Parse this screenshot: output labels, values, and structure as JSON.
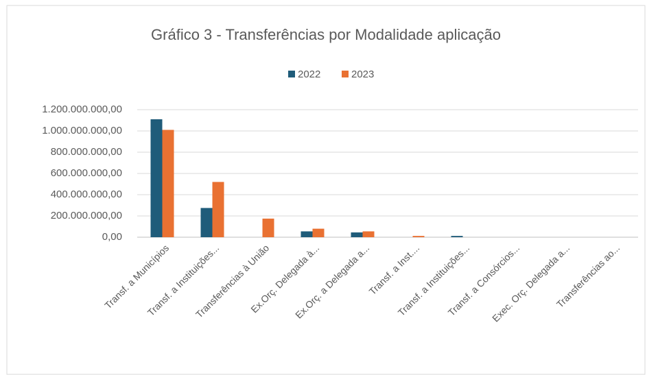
{
  "chart_data": {
    "type": "bar",
    "title": "Gráfico 3 - Transferências por Modalidade aplicação",
    "categories": [
      "Transf. a Municípios",
      "Transf. a Instituições...",
      "Transferências à União",
      "Ex.Orç. Delegada à...",
      "Ex.Orç. a Delegada a...",
      "Transf. a Inst....",
      "Transf. a Instituições...",
      "Transf. a Consórcios...",
      "Exec. Orç. Delegada a...",
      "Transferências ao..."
    ],
    "series": [
      {
        "name": "2022",
        "color": "#1f5c7a",
        "values": [
          1110000000,
          275000000,
          0,
          55000000,
          45000000,
          0,
          12000000,
          0,
          0,
          0
        ]
      },
      {
        "name": "2023",
        "color": "#e97132",
        "values": [
          1010000000,
          520000000,
          175000000,
          80000000,
          55000000,
          12000000,
          0,
          0,
          0,
          0
        ]
      }
    ],
    "ylim": [
      0,
      1200000000
    ],
    "yticks": [
      {
        "value": 0,
        "label": "0,00"
      },
      {
        "value": 200000000,
        "label": "200.000.000,00"
      },
      {
        "value": 400000000,
        "label": "400.000.000,00"
      },
      {
        "value": 600000000,
        "label": "600.000.000,00"
      },
      {
        "value": 800000000,
        "label": "800.000.000,00"
      },
      {
        "value": 1000000000,
        "label": "1.000.000.000,00"
      },
      {
        "value": 1200000000,
        "label": "1.200.000.000,00"
      }
    ],
    "grid": true,
    "legend": "top"
  }
}
